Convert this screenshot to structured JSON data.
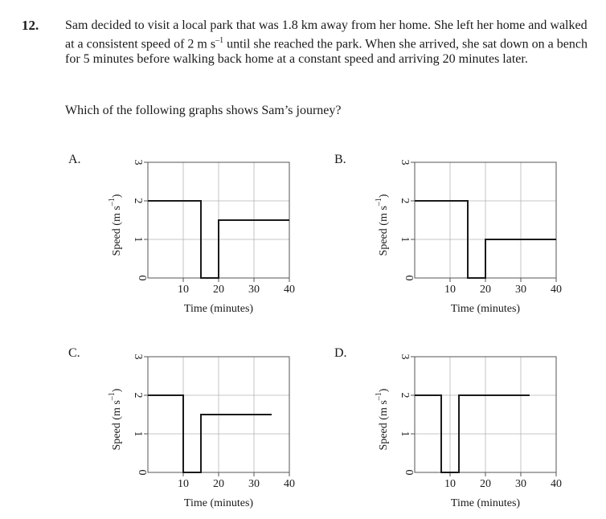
{
  "question": {
    "number": "12.",
    "stem_part1": "Sam decided to visit a local park that was 1.8 km away from her home. She left her home and walked at a consistent speed of 2 m s",
    "stem_sup": "–1",
    "stem_part2": " until she reached the park. When she arrived, she sat down on a bench for 5 minutes before walking back home at a constant speed and arriving 20 minutes later.",
    "ask": "Which of the following graphs shows Sam’s journey?"
  },
  "chart_data": [
    {
      "label": "A.",
      "type": "line",
      "xlabel": "Time (minutes)",
      "ylabel": "Speed (m s",
      "ylabel_sup": "–1",
      "ylabel_close": ")",
      "xlim": [
        0,
        40
      ],
      "ylim": [
        0,
        3
      ],
      "xticks": [
        "10",
        "20",
        "30",
        "40"
      ],
      "yticks": [
        "0",
        "1",
        "2",
        "3"
      ],
      "grid": true,
      "series": [
        {
          "x": [
            0,
            15,
            15,
            20,
            20,
            40
          ],
          "y": [
            2,
            2,
            0,
            0,
            1.5,
            1.5
          ]
        }
      ]
    },
    {
      "label": "B.",
      "type": "line",
      "xlabel": "Time (minutes)",
      "ylabel": "Speed (m s",
      "ylabel_sup": "–1",
      "ylabel_close": ")",
      "xlim": [
        0,
        40
      ],
      "ylim": [
        0,
        3
      ],
      "xticks": [
        "10",
        "20",
        "30",
        "40"
      ],
      "yticks": [
        "0",
        "1",
        "2",
        "3"
      ],
      "grid": true,
      "series": [
        {
          "x": [
            0,
            15,
            15,
            20,
            20,
            40
          ],
          "y": [
            2,
            2,
            0,
            0,
            1,
            1
          ]
        }
      ]
    },
    {
      "label": "C.",
      "type": "line",
      "xlabel": "Time (minutes)",
      "ylabel": "Speed (m s",
      "ylabel_sup": "–1",
      "ylabel_close": ")",
      "xlim": [
        0,
        40
      ],
      "ylim": [
        0,
        3
      ],
      "xticks": [
        "10",
        "20",
        "30",
        "40"
      ],
      "yticks": [
        "0",
        "1",
        "2",
        "3"
      ],
      "grid": true,
      "series": [
        {
          "x": [
            0,
            10,
            10,
            15,
            15,
            35
          ],
          "y": [
            2,
            2,
            0,
            0,
            1.5,
            1.5
          ]
        }
      ]
    },
    {
      "label": "D.",
      "type": "line",
      "xlabel": "Time (minutes)",
      "ylabel": "Speed (m s",
      "ylabel_sup": "–1",
      "ylabel_close": ")",
      "xlim": [
        0,
        40
      ],
      "ylim": [
        0,
        3
      ],
      "xticks": [
        "10",
        "20",
        "30",
        "40"
      ],
      "yticks": [
        "0",
        "1",
        "2",
        "3"
      ],
      "grid": true,
      "series": [
        {
          "x": [
            0,
            7.5,
            7.5,
            12.5,
            12.5,
            32.5
          ],
          "y": [
            2,
            2,
            0,
            0,
            2,
            2
          ]
        }
      ]
    }
  ]
}
